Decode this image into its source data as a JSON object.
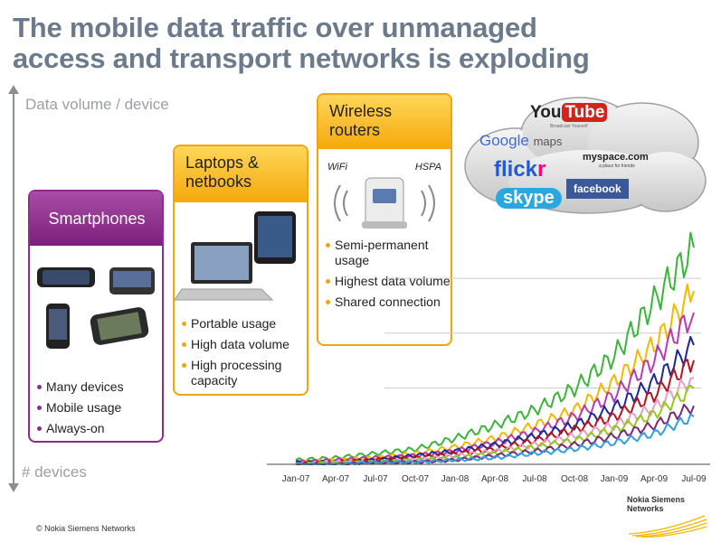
{
  "title": {
    "line1": "The mobile data traffic over unmanaged",
    "line2": "access and transport networks is exploding"
  },
  "axis": {
    "top_label": "Data volume / device",
    "bottom_label": "# devices"
  },
  "cards": {
    "smartphones": {
      "title": "Smartphones",
      "bullets": [
        "Many devices",
        "Mobile usage",
        "Always-on"
      ],
      "accent": "#8c2d8c"
    },
    "laptops": {
      "title_line1": "Laptops &",
      "title_line2": "netbooks",
      "bullets": [
        "Portable usage",
        "High data volume",
        "High processing capacity"
      ],
      "accent": "#f2a50c"
    },
    "routers": {
      "title_line1": "Wireless",
      "title_line2": "routers",
      "wifi_label": "WiFi",
      "hspa_label": "HSPA",
      "bullets": [
        "Semi-permanent usage",
        "Highest data volume",
        "Shared connection"
      ],
      "accent": "#f2a50c"
    }
  },
  "cloud_brands": {
    "youtube_you": "You",
    "youtube_tube": "Tube",
    "youtube_tagline": "Broadcast Yourself",
    "google": "Google",
    "maps": "maps",
    "myspace": "myspace.com",
    "myspace_tagline": "a place for friends",
    "flickr_a": "flick",
    "flickr_b": "r",
    "facebook": "facebook",
    "skype": "skype"
  },
  "chart_data": {
    "type": "line",
    "categories": [
      "Jan-07",
      "Apr-07",
      "Jul-07",
      "Oct-07",
      "Jan-08",
      "Apr-08",
      "Jul-08",
      "Oct-08",
      "Jan-09",
      "Apr-09",
      "Jul-09"
    ],
    "grid": true,
    "series": [
      {
        "color": "#3cb43c",
        "values": [
          2,
          3,
          5,
          7,
          12,
          18,
          25,
          35,
          50,
          75,
          100
        ]
      },
      {
        "color": "#f5b800",
        "values": [
          1,
          2,
          3,
          5,
          8,
          12,
          18,
          25,
          38,
          55,
          80
        ]
      },
      {
        "color": "#b43cb4",
        "values": [
          1,
          2,
          3,
          4,
          6,
          10,
          15,
          22,
          32,
          48,
          70
        ]
      },
      {
        "color": "#1e2896",
        "values": [
          1,
          1,
          2,
          4,
          6,
          9,
          13,
          18,
          26,
          38,
          55
        ]
      },
      {
        "color": "#b4141e",
        "values": [
          0,
          1,
          2,
          3,
          5,
          7,
          11,
          16,
          22,
          32,
          48
        ]
      },
      {
        "color": "#e6a0c8",
        "values": [
          0,
          1,
          1,
          2,
          4,
          6,
          9,
          13,
          18,
          26,
          40
        ]
      },
      {
        "color": "#96c81e",
        "values": [
          0,
          1,
          1,
          2,
          3,
          5,
          8,
          11,
          16,
          23,
          35
        ]
      },
      {
        "color": "#7a2a7a",
        "values": [
          0,
          0,
          1,
          1,
          2,
          4,
          6,
          9,
          13,
          18,
          27
        ]
      },
      {
        "color": "#32a0dc",
        "values": [
          0,
          0,
          1,
          1,
          2,
          3,
          5,
          7,
          10,
          14,
          22
        ]
      }
    ],
    "ylim": [
      0,
      110
    ]
  },
  "footer": {
    "nsn_line1": "Nokia Siemens",
    "nsn_line2": "Networks",
    "copyright": "© Nokia Siemens Networks"
  }
}
